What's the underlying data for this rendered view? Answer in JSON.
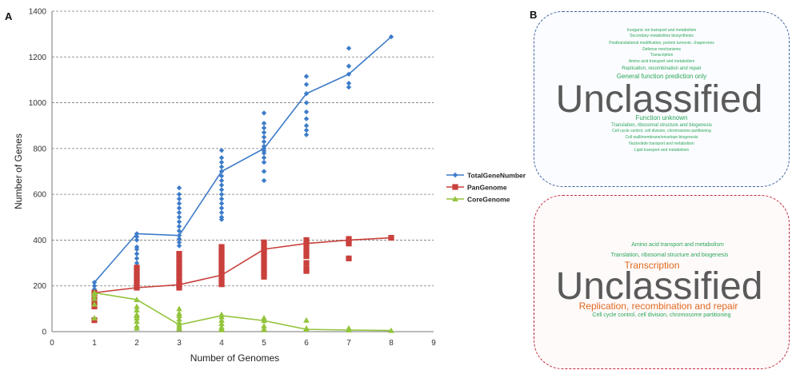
{
  "panel_a_label": "A",
  "panel_b_label": "B",
  "chart_data": {
    "type": "scatter",
    "xlabel": "Number of Genomes",
    "ylabel": "Number of Genes",
    "xlim": [
      0,
      9
    ],
    "ylim": [
      0,
      1400
    ],
    "x_ticks": [
      "0",
      "1",
      "2",
      "3",
      "4",
      "5",
      "6",
      "7",
      "8",
      "9"
    ],
    "y_ticks": [
      "0",
      "200",
      "400",
      "600",
      "800",
      "1000",
      "1200",
      "1400"
    ],
    "grid": "horizontal dashed",
    "legend_position": "right",
    "colors": {
      "TotalGeneNumber": "#3d7cc9",
      "PanGenome": "#c9403c",
      "CoreGenome": "#93c43c"
    },
    "series": [
      {
        "name": "TotalGeneNumber",
        "marker": "diamond",
        "line": [
          [
            1,
            215
          ],
          [
            2,
            428
          ],
          [
            3,
            420
          ],
          [
            4,
            700
          ],
          [
            5,
            800
          ],
          [
            6,
            1040
          ],
          [
            7,
            1125
          ],
          [
            8,
            1288
          ]
        ],
        "points": [
          [
            1,
            215
          ],
          [
            1,
            200
          ],
          [
            1,
            185
          ],
          [
            2,
            428
          ],
          [
            2,
            415
          ],
          [
            2,
            400
          ],
          [
            2,
            370
          ],
          [
            2,
            360
          ],
          [
            2,
            340
          ],
          [
            2,
            320
          ],
          [
            2,
            300
          ],
          [
            2,
            280
          ],
          [
            2,
            260
          ],
          [
            2,
            240
          ],
          [
            3,
            628
          ],
          [
            3,
            600
          ],
          [
            3,
            580
          ],
          [
            3,
            560
          ],
          [
            3,
            540
          ],
          [
            3,
            520
          ],
          [
            3,
            500
          ],
          [
            3,
            480
          ],
          [
            3,
            460
          ],
          [
            3,
            440
          ],
          [
            3,
            420
          ],
          [
            3,
            405
          ],
          [
            3,
            390
          ],
          [
            3,
            375
          ],
          [
            4,
            792
          ],
          [
            4,
            760
          ],
          [
            4,
            740
          ],
          [
            4,
            720
          ],
          [
            4,
            700
          ],
          [
            4,
            680
          ],
          [
            4,
            660
          ],
          [
            4,
            640
          ],
          [
            4,
            620
          ],
          [
            4,
            600
          ],
          [
            4,
            580
          ],
          [
            4,
            560
          ],
          [
            4,
            540
          ],
          [
            4,
            520
          ],
          [
            4,
            500
          ],
          [
            4,
            490
          ],
          [
            5,
            955
          ],
          [
            5,
            910
          ],
          [
            5,
            890
          ],
          [
            5,
            870
          ],
          [
            5,
            850
          ],
          [
            5,
            830
          ],
          [
            5,
            810
          ],
          [
            5,
            800
          ],
          [
            5,
            790
          ],
          [
            5,
            780
          ],
          [
            5,
            760
          ],
          [
            5,
            740
          ],
          [
            5,
            700
          ],
          [
            5,
            660
          ],
          [
            6,
            1115
          ],
          [
            6,
            1080
          ],
          [
            6,
            1040
          ],
          [
            6,
            1000
          ],
          [
            6,
            960
          ],
          [
            6,
            930
          ],
          [
            6,
            900
          ],
          [
            6,
            880
          ],
          [
            6,
            860
          ],
          [
            7,
            1238
          ],
          [
            7,
            1160
          ],
          [
            7,
            1125
          ],
          [
            7,
            1085
          ],
          [
            7,
            1068
          ],
          [
            8,
            1288
          ]
        ]
      },
      {
        "name": "PanGenome",
        "marker": "square",
        "line": [
          [
            1,
            170
          ],
          [
            2,
            192
          ],
          [
            3,
            205
          ],
          [
            4,
            247
          ],
          [
            5,
            360
          ],
          [
            6,
            385
          ],
          [
            7,
            400
          ],
          [
            8,
            410
          ]
        ],
        "points": [
          [
            1,
            170
          ],
          [
            1,
            150
          ],
          [
            1,
            130
          ],
          [
            1,
            110
          ],
          [
            1,
            50
          ],
          [
            2,
            280
          ],
          [
            2,
            265
          ],
          [
            2,
            250
          ],
          [
            2,
            235
          ],
          [
            2,
            220
          ],
          [
            2,
            200
          ],
          [
            2,
            192
          ],
          [
            3,
            340
          ],
          [
            3,
            320
          ],
          [
            3,
            300
          ],
          [
            3,
            280
          ],
          [
            3,
            260
          ],
          [
            3,
            240
          ],
          [
            3,
            220
          ],
          [
            3,
            205
          ],
          [
            3,
            192
          ],
          [
            4,
            370
          ],
          [
            4,
            355
          ],
          [
            4,
            340
          ],
          [
            4,
            325
          ],
          [
            4,
            310
          ],
          [
            4,
            295
          ],
          [
            4,
            280
          ],
          [
            4,
            265
          ],
          [
            4,
            250
          ],
          [
            4,
            235
          ],
          [
            4,
            220
          ],
          [
            4,
            207
          ],
          [
            5,
            390
          ],
          [
            5,
            375
          ],
          [
            5,
            360
          ],
          [
            5,
            345
          ],
          [
            5,
            330
          ],
          [
            5,
            315
          ],
          [
            5,
            300
          ],
          [
            5,
            285
          ],
          [
            5,
            270
          ],
          [
            5,
            255
          ],
          [
            5,
            240
          ],
          [
            6,
            400
          ],
          [
            6,
            385
          ],
          [
            6,
            368
          ],
          [
            6,
            350
          ],
          [
            6,
            330
          ],
          [
            6,
            300
          ],
          [
            6,
            275
          ],
          [
            6,
            265
          ],
          [
            7,
            405
          ],
          [
            7,
            395
          ],
          [
            7,
            385
          ],
          [
            7,
            320
          ],
          [
            8,
            410
          ]
        ]
      },
      {
        "name": "CoreGenome",
        "marker": "triangle",
        "line": [
          [
            1,
            170
          ],
          [
            2,
            140
          ],
          [
            3,
            30
          ],
          [
            4,
            70
          ],
          [
            5,
            48
          ],
          [
            6,
            10
          ],
          [
            7,
            7
          ],
          [
            8,
            5
          ]
        ],
        "points": [
          [
            1,
            170
          ],
          [
            1,
            160
          ],
          [
            1,
            145
          ],
          [
            1,
            120
          ],
          [
            1,
            60
          ],
          [
            2,
            140
          ],
          [
            2,
            110
          ],
          [
            2,
            95
          ],
          [
            2,
            75
          ],
          [
            2,
            70
          ],
          [
            2,
            60
          ],
          [
            2,
            45
          ],
          [
            2,
            25
          ],
          [
            2,
            15
          ],
          [
            3,
            100
          ],
          [
            3,
            80
          ],
          [
            3,
            70
          ],
          [
            3,
            55
          ],
          [
            3,
            40
          ],
          [
            3,
            30
          ],
          [
            3,
            20
          ],
          [
            3,
            12
          ],
          [
            4,
            75
          ],
          [
            4,
            65
          ],
          [
            4,
            50
          ],
          [
            4,
            35
          ],
          [
            4,
            20
          ],
          [
            4,
            12
          ],
          [
            4,
            8
          ],
          [
            5,
            60
          ],
          [
            5,
            48
          ],
          [
            5,
            25
          ],
          [
            5,
            12
          ],
          [
            5,
            8
          ],
          [
            6,
            50
          ],
          [
            6,
            15
          ],
          [
            6,
            10
          ],
          [
            7,
            15
          ],
          [
            7,
            7
          ],
          [
            8,
            5
          ]
        ]
      }
    ]
  },
  "cloud_core": {
    "words": [
      {
        "text": "Inorganic ion transport and metabolism",
        "size": 5
      },
      {
        "text": "Secondary metabolites biosynthesis",
        "size": 5
      },
      {
        "text": "Posttranslational modification, protein turnover, chaperones",
        "size": 5
      },
      {
        "text": "Defense mechanisms",
        "size": 5
      },
      {
        "text": "Transcription",
        "size": 5
      },
      {
        "text": "Amino acid transport and metabolism",
        "size": 5
      },
      {
        "text": "Replication, recombination and repair",
        "size": 6
      },
      {
        "text": "General function prediction only",
        "size": 8
      },
      {
        "text": "Unclassified",
        "size": 48
      },
      {
        "text": "Function unknown",
        "size": 8
      },
      {
        "text": "Translation, ribosomal structure and biogenesis",
        "size": 6
      },
      {
        "text": "Cell cycle control, cell division,  chromosome partitioning",
        "size": 5
      },
      {
        "text": "Cell wall/membrane/envelope biogenesis",
        "size": 5
      },
      {
        "text": "Nucleotide transport and metabolism",
        "size": 5
      },
      {
        "text": "Lipid transport and metabolism",
        "size": 5
      }
    ]
  },
  "cloud_pan": {
    "words": [
      {
        "text": "Amino acid transport and metabolism",
        "size": 7
      },
      {
        "text": "Translation, ribosomal structure and biogenesis",
        "size": 7
      },
      {
        "text": "Transcription",
        "size": 12
      },
      {
        "text": "Unclassified",
        "size": 48
      },
      {
        "text": "Replication, recombination and repair",
        "size": 12
      },
      {
        "text": "Cell cycle control, cell division, chromosome partitioning",
        "size": 7
      }
    ]
  }
}
